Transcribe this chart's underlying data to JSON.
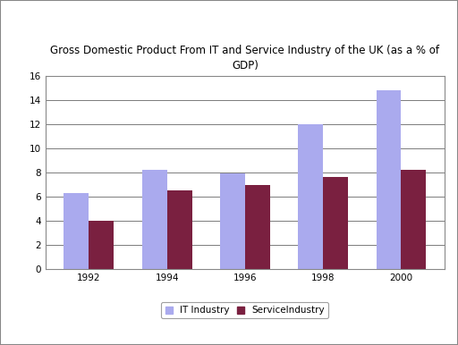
{
  "title": "Gross Domestic Product From IT and Service Industry of the UK (as a % of\nGDP)",
  "years": [
    "1992",
    "1994",
    "1996",
    "1998",
    "2000"
  ],
  "it_industry": [
    6.3,
    8.2,
    7.9,
    12.0,
    14.8
  ],
  "service_industry": [
    4.0,
    6.5,
    7.0,
    7.6,
    8.2
  ],
  "it_color": "#aaaaee",
  "service_color": "#7a2040",
  "ylim": [
    0,
    16
  ],
  "yticks": [
    0,
    2,
    4,
    6,
    8,
    10,
    12,
    14,
    16
  ],
  "legend_it": "IT Industry",
  "legend_service": "ServiceIndustry",
  "bar_width": 0.32,
  "background_color": "#ffffff",
  "title_fontsize": 8.5,
  "tick_fontsize": 7.5,
  "legend_fontsize": 7.5,
  "figure_border_color": "#aaaaaa"
}
